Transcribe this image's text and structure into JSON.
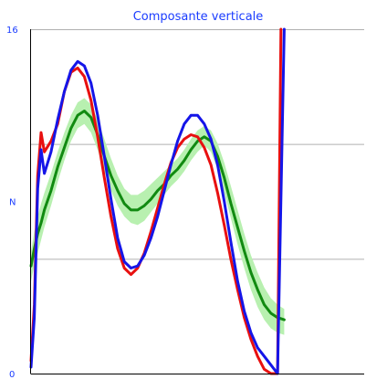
{
  "chart_data": {
    "type": "line",
    "title": "Composante verticale",
    "ylabel": "N",
    "ylim": [
      0,
      16
    ],
    "y_ticks": [
      "0",
      "16"
    ],
    "xlim": [
      0,
      100
    ],
    "grid": true,
    "grid_values": [
      5.33,
      10.67,
      16
    ],
    "colors": {
      "title": "#1a3cff",
      "ticks": "#1a3cff",
      "grid": "#b0b0b0",
      "axis": "#000000",
      "band": "#b8f0b0"
    },
    "band": {
      "x": [
        0,
        1,
        2,
        3,
        4,
        6,
        8,
        10,
        12,
        14,
        16,
        18,
        20,
        22,
        24,
        26,
        28,
        30,
        32,
        34,
        36,
        38,
        40,
        42,
        44,
        46,
        48,
        50,
        52,
        54,
        56,
        58,
        60,
        62,
        64,
        66,
        68,
        70,
        72,
        74,
        76
      ],
      "upper": [
        5.7,
        6.6,
        7.3,
        7.9,
        8.4,
        9.3,
        10.3,
        11.2,
        12.0,
        12.6,
        12.8,
        12.5,
        11.8,
        10.9,
        10.0,
        9.2,
        8.6,
        8.3,
        8.3,
        8.5,
        8.8,
        9.1,
        9.4,
        9.7,
        10.0,
        10.4,
        10.9,
        11.3,
        11.5,
        11.3,
        10.7,
        9.8,
        8.7,
        7.6,
        6.5,
        5.5,
        4.7,
        4.0,
        3.5,
        3.2,
        3.0
      ],
      "lower": [
        4.3,
        5.0,
        5.6,
        6.2,
        6.8,
        7.8,
        8.9,
        9.9,
        10.8,
        11.4,
        11.6,
        11.2,
        10.4,
        9.4,
        8.5,
        7.8,
        7.3,
        7.0,
        6.9,
        7.1,
        7.5,
        7.9,
        8.3,
        8.7,
        9.0,
        9.4,
        9.9,
        10.3,
        10.6,
        10.3,
        9.5,
        8.4,
        7.2,
        6.0,
        4.9,
        3.9,
        3.1,
        2.5,
        2.1,
        1.9,
        1.8
      ]
    },
    "series": [
      {
        "color": "#118a11",
        "x": [
          0,
          1,
          2,
          3,
          4,
          6,
          8,
          10,
          12,
          14,
          16,
          18,
          20,
          22,
          24,
          26,
          28,
          30,
          32,
          34,
          36,
          38,
          40,
          42,
          44,
          46,
          48,
          50,
          52,
          54,
          56,
          58,
          60,
          62,
          64,
          66,
          68,
          70,
          72,
          74,
          76
        ],
        "y": [
          5.0,
          5.8,
          6.5,
          7.0,
          7.6,
          8.5,
          9.6,
          10.5,
          11.4,
          12.0,
          12.2,
          11.9,
          11.1,
          10.1,
          9.2,
          8.5,
          7.9,
          7.6,
          7.6,
          7.8,
          8.1,
          8.5,
          8.8,
          9.2,
          9.5,
          9.9,
          10.4,
          10.8,
          11.0,
          10.8,
          10.1,
          9.1,
          7.9,
          6.8,
          5.7,
          4.7,
          3.9,
          3.2,
          2.8,
          2.6,
          2.5
        ]
      },
      {
        "color": "#e81010",
        "x": [
          0,
          1,
          2,
          3,
          4,
          6,
          8,
          10,
          12,
          14,
          16,
          18,
          20,
          22,
          24,
          26,
          28,
          30,
          32,
          34,
          36,
          38,
          40,
          42,
          44,
          46,
          48,
          50,
          52,
          54,
          56,
          58,
          60,
          62,
          64,
          66,
          68,
          70,
          72,
          74,
          75
        ],
        "y": [
          0.6,
          3.2,
          9.2,
          11.2,
          10.3,
          10.8,
          11.6,
          13.1,
          14.0,
          14.2,
          13.8,
          12.7,
          11.0,
          9.1,
          7.3,
          5.8,
          4.9,
          4.6,
          4.9,
          5.6,
          6.6,
          7.7,
          8.8,
          9.8,
          10.5,
          10.9,
          11.1,
          11.0,
          10.5,
          9.7,
          8.4,
          6.9,
          5.3,
          3.9,
          2.6,
          1.6,
          0.8,
          0.2,
          0.0,
          0.0,
          16.0
        ]
      },
      {
        "color": "#1515e8",
        "x": [
          0,
          1,
          2,
          3,
          4,
          6,
          8,
          10,
          12,
          14,
          16,
          18,
          20,
          22,
          24,
          26,
          28,
          30,
          32,
          34,
          36,
          38,
          40,
          42,
          44,
          46,
          48,
          50,
          52,
          54,
          56,
          58,
          60,
          62,
          64,
          66,
          68,
          70,
          72,
          74,
          76
        ],
        "y": [
          0.3,
          2.6,
          8.6,
          10.4,
          9.3,
          10.3,
          11.8,
          13.1,
          14.1,
          14.5,
          14.3,
          13.5,
          12.0,
          10.1,
          8.1,
          6.3,
          5.2,
          4.9,
          5.0,
          5.5,
          6.3,
          7.3,
          8.5,
          9.7,
          10.8,
          11.6,
          12.0,
          12.0,
          11.6,
          10.9,
          9.7,
          8.0,
          6.1,
          4.3,
          2.9,
          1.9,
          1.2,
          0.8,
          0.4,
          0.0,
          16.0
        ]
      }
    ]
  }
}
